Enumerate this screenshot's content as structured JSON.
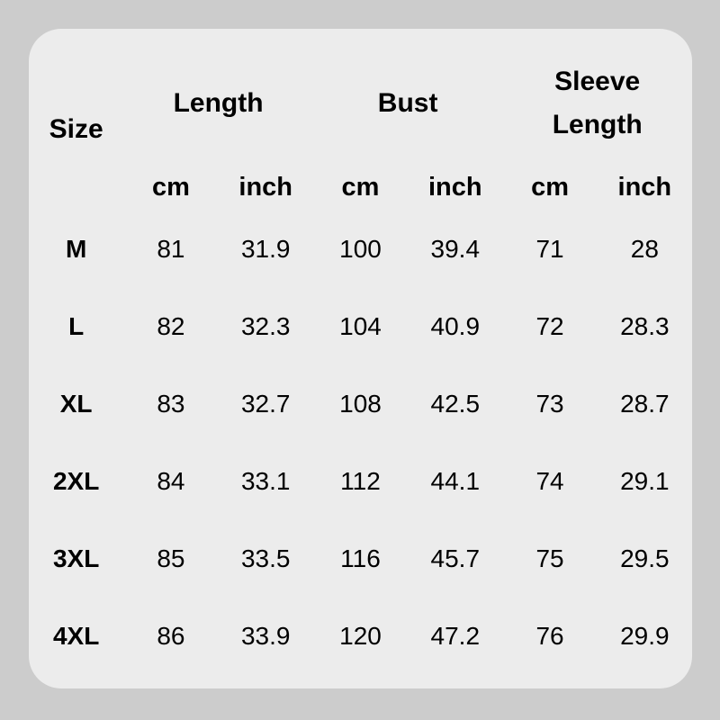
{
  "colors": {
    "background": "#cccccc",
    "card": "#ececec",
    "text": "#000000"
  },
  "table": {
    "groups": [
      {
        "label": "Size"
      },
      {
        "label": "Length"
      },
      {
        "label": "Bust"
      },
      {
        "label": "Sleeve Length"
      }
    ],
    "subheaders": {
      "length_cm": "cm",
      "length_inch": "inch",
      "bust_cm": "cm",
      "bust_inch": "inch",
      "sleeve_cm": "cm",
      "sleeve_inch": "inch"
    },
    "rows": [
      {
        "size": "M",
        "cells": [
          "81",
          "31.9",
          "100",
          "39.4",
          "71",
          "28"
        ]
      },
      {
        "size": "L",
        "cells": [
          "82",
          "32.3",
          "104",
          "40.9",
          "72",
          "28.3"
        ]
      },
      {
        "size": "XL",
        "cells": [
          "83",
          "32.7",
          "108",
          "42.5",
          "73",
          "28.7"
        ]
      },
      {
        "size": "2XL",
        "cells": [
          "84",
          "33.1",
          "112",
          "44.1",
          "74",
          "29.1"
        ]
      },
      {
        "size": "3XL",
        "cells": [
          "85",
          "33.5",
          "116",
          "45.7",
          "75",
          "29.5"
        ]
      },
      {
        "size": "4XL",
        "cells": [
          "86",
          "33.9",
          "120",
          "47.2",
          "76",
          "29.9"
        ]
      }
    ]
  },
  "chart_data": {
    "type": "table",
    "column_groups": [
      "Size",
      "Length",
      "Bust",
      "Sleeve Length"
    ],
    "columns": [
      "Size",
      "Length cm",
      "Length inch",
      "Bust cm",
      "Bust inch",
      "Sleeve Length cm",
      "Sleeve Length inch"
    ],
    "rows": [
      [
        "M",
        81,
        31.9,
        100,
        39.4,
        71,
        28
      ],
      [
        "L",
        82,
        32.3,
        104,
        40.9,
        72,
        28.3
      ],
      [
        "XL",
        83,
        32.7,
        108,
        42.5,
        73,
        28.7
      ],
      [
        "2XL",
        84,
        33.1,
        112,
        44.1,
        74,
        29.1
      ],
      [
        "3XL",
        85,
        33.5,
        116,
        45.7,
        75,
        29.5
      ],
      [
        "4XL",
        86,
        33.9,
        120,
        47.2,
        76,
        29.9
      ]
    ],
    "layout": {
      "grid": "off",
      "header_style": "bold",
      "units": [
        "cm",
        "inch"
      ]
    }
  }
}
